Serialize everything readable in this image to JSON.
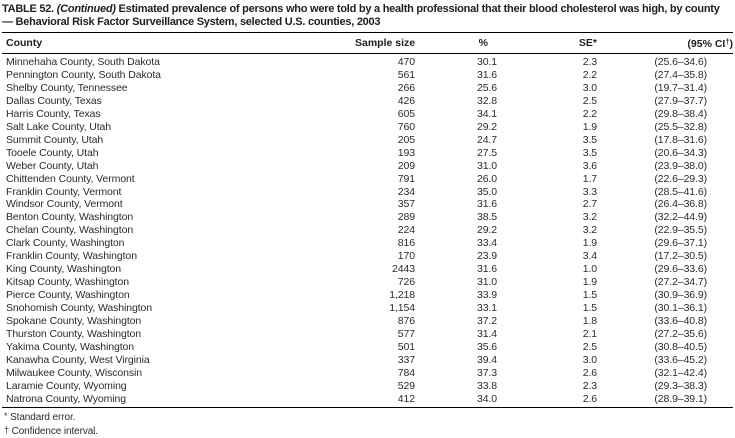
{
  "title": {
    "table_label": "TABLE 52.",
    "continued": "(Continued)",
    "rest": "Estimated prevalence of persons who were told by a health professional that their blood cholesterol was high, by county — Behavioral Risk Factor Surveillance System, selected U.S. counties, 2003"
  },
  "header": {
    "county": "County",
    "sample_size": "Sample size",
    "percent": "%",
    "se": "SE*",
    "ci_pre": "(95% CI",
    "ci_sup": "†",
    "ci_post": ")"
  },
  "rows": [
    {
      "county": "Minnehaha County, South Dakota",
      "sample_size": "470",
      "pct": "30.1",
      "se": "2.3",
      "ci": "(25.6–34.6)"
    },
    {
      "county": "Pennington County, South Dakota",
      "sample_size": "561",
      "pct": "31.6",
      "se": "2.2",
      "ci": "(27.4–35.8)"
    },
    {
      "county": "Shelby County, Tennessee",
      "sample_size": "266",
      "pct": "25.6",
      "se": "3.0",
      "ci": "(19.7–31.4)"
    },
    {
      "county": "Dallas County, Texas",
      "sample_size": "426",
      "pct": "32.8",
      "se": "2.5",
      "ci": "(27.9–37.7)"
    },
    {
      "county": "Harris County, Texas",
      "sample_size": "605",
      "pct": "34.1",
      "se": "2.2",
      "ci": "(29.8–38.4)"
    },
    {
      "county": "Salt Lake County, Utah",
      "sample_size": "760",
      "pct": "29.2",
      "se": "1.9",
      "ci": "(25.5–32.8)"
    },
    {
      "county": "Summit County, Utah",
      "sample_size": "205",
      "pct": "24.7",
      "se": "3.5",
      "ci": "(17.8–31.6)"
    },
    {
      "county": "Tooele County, Utah",
      "sample_size": "193",
      "pct": "27.5",
      "se": "3.5",
      "ci": "(20.6–34.3)"
    },
    {
      "county": "Weber County, Utah",
      "sample_size": "209",
      "pct": "31.0",
      "se": "3.6",
      "ci": "(23.9–38.0)"
    },
    {
      "county": "Chittenden County, Vermont",
      "sample_size": "791",
      "pct": "26.0",
      "se": "1.7",
      "ci": "(22.6–29.3)"
    },
    {
      "county": "Franklin County, Vermont",
      "sample_size": "234",
      "pct": "35.0",
      "se": "3.3",
      "ci": "(28.5–41.6)"
    },
    {
      "county": "Windsor County, Vermont",
      "sample_size": "357",
      "pct": "31.6",
      "se": "2.7",
      "ci": "(26.4–36.8)"
    },
    {
      "county": "Benton County, Washington",
      "sample_size": "289",
      "pct": "38.5",
      "se": "3.2",
      "ci": "(32.2–44.9)"
    },
    {
      "county": "Chelan County, Washington",
      "sample_size": "224",
      "pct": "29.2",
      "se": "3.2",
      "ci": "(22.9–35.5)"
    },
    {
      "county": "Clark County, Washington",
      "sample_size": "816",
      "pct": "33.4",
      "se": "1.9",
      "ci": "(29.6–37.1)"
    },
    {
      "county": "Franklin County, Washington",
      "sample_size": "170",
      "pct": "23.9",
      "se": "3.4",
      "ci": "(17.2–30.5)"
    },
    {
      "county": "King County, Washington",
      "sample_size": "2443",
      "pct": "31.6",
      "se": "1.0",
      "ci": "(29.6–33.6)"
    },
    {
      "county": "Kitsap County, Washington",
      "sample_size": "726",
      "pct": "31.0",
      "se": "1.9",
      "ci": "(27.2–34.7)"
    },
    {
      "county": "Pierce County, Washington",
      "sample_size": "1,218",
      "pct": "33.9",
      "se": "1.5",
      "ci": "(30.9–36.9)"
    },
    {
      "county": "Snohomish County, Washington",
      "sample_size": "1,154",
      "pct": "33.1",
      "se": "1.5",
      "ci": "(30.1–36.1)"
    },
    {
      "county": "Spokane County, Washington",
      "sample_size": "876",
      "pct": "37.2",
      "se": "1.8",
      "ci": "(33.6–40.8)"
    },
    {
      "county": "Thurston County, Washington",
      "sample_size": "577",
      "pct": "31.4",
      "se": "2.1",
      "ci": "(27.2–35.6)"
    },
    {
      "county": "Yakima County, Washington",
      "sample_size": "501",
      "pct": "35.6",
      "se": "2.5",
      "ci": "(30.8–40.5)"
    },
    {
      "county": "Kanawha County, West Virginia",
      "sample_size": "337",
      "pct": "39.4",
      "se": "3.0",
      "ci": "(33.6–45.2)"
    },
    {
      "county": "Milwaukee County, Wisconsin",
      "sample_size": "784",
      "pct": "37.3",
      "se": "2.6",
      "ci": "(32.1–42.4)"
    },
    {
      "county": "Laramie County, Wyoming",
      "sample_size": "529",
      "pct": "33.8",
      "se": "2.3",
      "ci": "(29.3–38.3)"
    },
    {
      "county": "Natrona County, Wyoming",
      "sample_size": "412",
      "pct": "34.0",
      "se": "2.6",
      "ci": "(28.9–39.1)"
    }
  ],
  "footnotes": [
    {
      "marker": "*",
      "text": "Standard error."
    },
    {
      "marker": "†",
      "text": "Confidence interval."
    }
  ]
}
